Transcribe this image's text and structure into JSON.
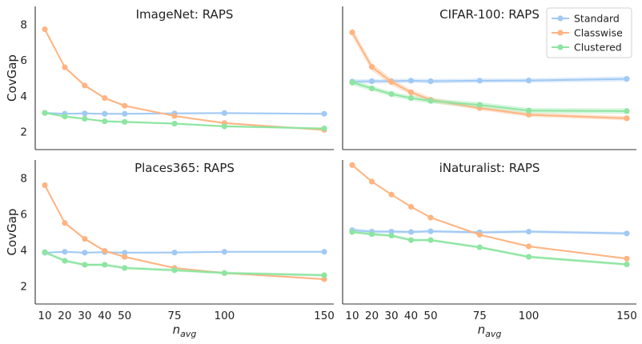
{
  "chart_data": {
    "type": "line",
    "shared_x": [
      10,
      20,
      30,
      40,
      50,
      75,
      100,
      150
    ],
    "x_tick_labels": [
      "10",
      "20",
      "30",
      "40",
      "50",
      "75",
      "100",
      "150"
    ],
    "xlabel_base": "n",
    "xlabel_sub": "avg",
    "ylabel": "CovGap",
    "ylim": [
      1,
      9
    ],
    "y_ticks": [
      2,
      4,
      6,
      8
    ],
    "legend": {
      "placement": "top-right",
      "entries": [
        "Standard",
        "Classwise",
        "Clustered"
      ]
    },
    "colors": {
      "Standard": "#a1c9f4",
      "Classwise": "#ffb482",
      "Clustered": "#8de5a1"
    },
    "panels": [
      {
        "title": "ImageNet: RAPS",
        "series": [
          {
            "name": "Standard",
            "values": [
              3.05,
              3.0,
              3.02,
              3.0,
              3.0,
              3.02,
              3.04,
              3.0
            ],
            "band": [
              0.05,
              0.05,
              0.05,
              0.05,
              0.05,
              0.05,
              0.05,
              0.05
            ]
          },
          {
            "name": "Classwise",
            "values": [
              7.72,
              5.6,
              4.58,
              3.88,
              3.45,
              2.88,
              2.48,
              2.1
            ],
            "band": [
              0.08,
              0.08,
              0.06,
              0.06,
              0.06,
              0.05,
              0.05,
              0.05
            ]
          },
          {
            "name": "Clustered",
            "values": [
              3.05,
              2.85,
              2.72,
              2.58,
              2.55,
              2.45,
              2.3,
              2.18
            ],
            "band": [
              0.06,
              0.06,
              0.06,
              0.06,
              0.06,
              0.06,
              0.06,
              0.06
            ]
          }
        ]
      },
      {
        "title": "CIFAR-100: RAPS",
        "series": [
          {
            "name": "Standard",
            "values": [
              4.8,
              4.82,
              4.82,
              4.85,
              4.82,
              4.85,
              4.86,
              4.95
            ],
            "band": [
              0.12,
              0.12,
              0.12,
              0.12,
              0.12,
              0.12,
              0.12,
              0.14
            ]
          },
          {
            "name": "Classwise",
            "values": [
              7.55,
              5.62,
              4.78,
              4.2,
              3.78,
              3.32,
              2.95,
              2.75
            ],
            "band": [
              0.25,
              0.22,
              0.18,
              0.15,
              0.14,
              0.12,
              0.12,
              0.12
            ]
          },
          {
            "name": "Clustered",
            "values": [
              4.75,
              4.42,
              4.1,
              3.88,
              3.72,
              3.5,
              3.18,
              3.15
            ],
            "band": [
              0.15,
              0.14,
              0.14,
              0.14,
              0.14,
              0.15,
              0.15,
              0.15
            ]
          }
        ]
      },
      {
        "title": "Places365: RAPS",
        "series": [
          {
            "name": "Standard",
            "values": [
              3.85,
              3.9,
              3.85,
              3.88,
              3.85,
              3.86,
              3.9,
              3.9
            ],
            "band": [
              0.05,
              0.05,
              0.05,
              0.05,
              0.05,
              0.05,
              0.05,
              0.05
            ]
          },
          {
            "name": "Classwise",
            "values": [
              7.6,
              5.5,
              4.62,
              3.95,
              3.62,
              3.0,
              2.72,
              2.38
            ],
            "band": [
              0.08,
              0.08,
              0.07,
              0.06,
              0.06,
              0.05,
              0.05,
              0.05
            ]
          },
          {
            "name": "Clustered",
            "values": [
              3.88,
              3.4,
              3.18,
              3.18,
              3.0,
              2.88,
              2.72,
              2.6
            ],
            "band": [
              0.08,
              0.08,
              0.08,
              0.08,
              0.08,
              0.08,
              0.08,
              0.08
            ]
          }
        ]
      },
      {
        "title": "iNaturalist: RAPS",
        "series": [
          {
            "name": "Standard",
            "values": [
              5.1,
              5.02,
              5.02,
              5.0,
              5.04,
              4.98,
              5.02,
              4.92
            ],
            "band": [
              0.12,
              0.08,
              0.08,
              0.08,
              0.08,
              0.08,
              0.08,
              0.08
            ]
          },
          {
            "name": "Classwise",
            "values": [
              8.72,
              7.8,
              7.08,
              6.4,
              5.8,
              4.85,
              4.2,
              3.52
            ],
            "band": [
              0.05,
              0.05,
              0.05,
              0.05,
              0.05,
              0.05,
              0.05,
              0.05
            ]
          },
          {
            "name": "Clustered",
            "values": [
              5.0,
              4.88,
              4.8,
              4.55,
              4.55,
              4.15,
              3.62,
              3.2
            ],
            "band": [
              0.08,
              0.08,
              0.08,
              0.08,
              0.08,
              0.08,
              0.08,
              0.08
            ]
          }
        ]
      }
    ]
  }
}
